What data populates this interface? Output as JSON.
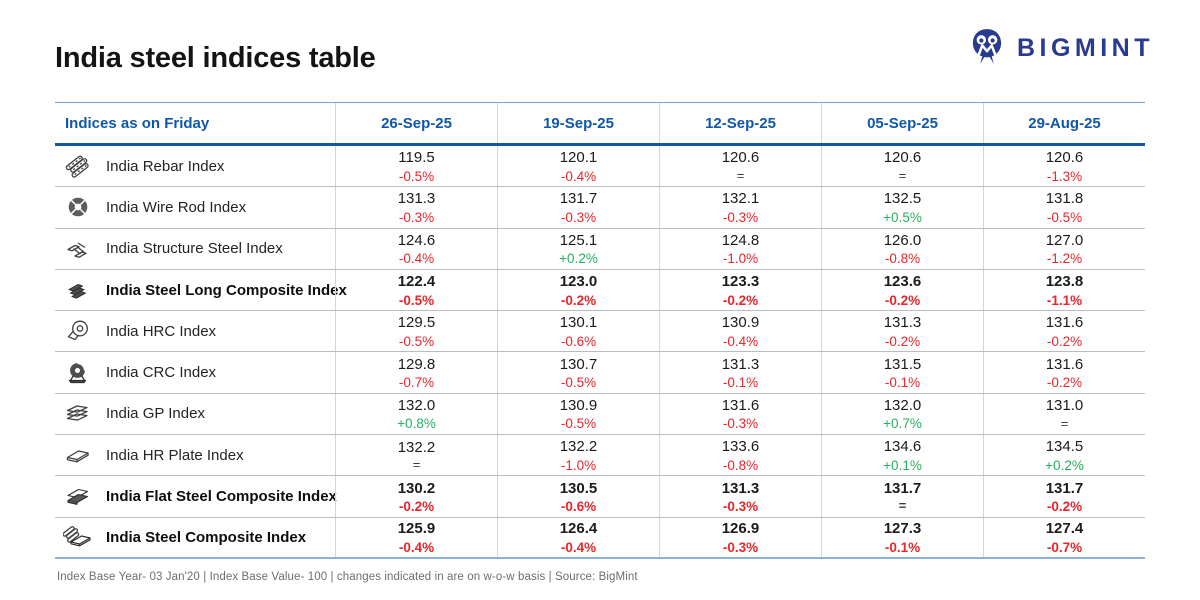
{
  "page": {
    "title": "India steel indices table",
    "footnote": "Index Base Year- 03 Jan'20 | Index Base Value- 100 | changes indicated in are on w-o-w basis | Source: BigMint"
  },
  "logo": {
    "brand": "BIGMINT"
  },
  "colors": {
    "header_blue": "#1157a8",
    "logo_navy": "#283b8f",
    "up_green": "#27ae60",
    "down_red": "#e8262b",
    "flat_gray": "#3c3c3c"
  },
  "table": {
    "header_label": "Indices as on Friday",
    "dates": [
      "26-Sep-25",
      "19-Sep-25",
      "12-Sep-25",
      "05-Sep-25",
      "29-Aug-25"
    ],
    "rows": [
      {
        "name": "India Rebar Index",
        "icon": "rebar-icon",
        "bold": false,
        "cells": [
          [
            "119.5",
            "-0.5%"
          ],
          [
            "120.1",
            "-0.4%"
          ],
          [
            "120.6",
            "="
          ],
          [
            "120.6",
            "="
          ],
          [
            "120.6",
            "-1.3%"
          ]
        ]
      },
      {
        "name": "India Wire Rod Index",
        "icon": "wire-rod-icon",
        "bold": false,
        "cells": [
          [
            "131.3",
            "-0.3%"
          ],
          [
            "131.7",
            "-0.3%"
          ],
          [
            "132.1",
            "-0.3%"
          ],
          [
            "132.5",
            "+0.5%"
          ],
          [
            "131.8",
            "-0.5%"
          ]
        ]
      },
      {
        "name": "India Structure Steel Index",
        "icon": "structure-steel-icon",
        "bold": false,
        "cells": [
          [
            "124.6",
            "-0.4%"
          ],
          [
            "125.1",
            "+0.2%"
          ],
          [
            "124.8",
            "-1.0%"
          ],
          [
            "126.0",
            "-0.8%"
          ],
          [
            "127.0",
            "-1.2%"
          ]
        ]
      },
      {
        "name": "India Steel Long Composite Index",
        "icon": "long-composite-icon",
        "bold": true,
        "cells": [
          [
            "122.4",
            "-0.5%"
          ],
          [
            "123.0",
            "-0.2%"
          ],
          [
            "123.3",
            "-0.2%"
          ],
          [
            "123.6",
            "-0.2%"
          ],
          [
            "123.8",
            "-1.1%"
          ]
        ]
      },
      {
        "name": "India HRC Index",
        "icon": "hrc-coil-icon",
        "bold": false,
        "cells": [
          [
            "129.5",
            "-0.5%"
          ],
          [
            "130.1",
            "-0.6%"
          ],
          [
            "130.9",
            "-0.4%"
          ],
          [
            "131.3",
            "-0.2%"
          ],
          [
            "131.6",
            "-0.2%"
          ]
        ]
      },
      {
        "name": "India CRC Index",
        "icon": "crc-coil-icon",
        "bold": false,
        "cells": [
          [
            "129.8",
            "-0.7%"
          ],
          [
            "130.7",
            "-0.5%"
          ],
          [
            "131.3",
            "-0.1%"
          ],
          [
            "131.5",
            "-0.1%"
          ],
          [
            "131.6",
            "-0.2%"
          ]
        ]
      },
      {
        "name": "India GP Index",
        "icon": "gp-sheets-icon",
        "bold": false,
        "cells": [
          [
            "132.0",
            "+0.8%"
          ],
          [
            "130.9",
            "-0.5%"
          ],
          [
            "131.6",
            "-0.3%"
          ],
          [
            "132.0",
            "+0.7%"
          ],
          [
            "131.0",
            "="
          ]
        ]
      },
      {
        "name": "India HR Plate Index",
        "icon": "hr-plate-icon",
        "bold": false,
        "cells": [
          [
            "132.2",
            "="
          ],
          [
            "132.2",
            "-1.0%"
          ],
          [
            "133.6",
            "-0.8%"
          ],
          [
            "134.6",
            "+0.1%"
          ],
          [
            "134.5",
            "+0.2%"
          ]
        ]
      },
      {
        "name": "India Flat Steel Composite Index",
        "icon": "flat-composite-icon",
        "bold": true,
        "cells": [
          [
            "130.2",
            "-0.2%"
          ],
          [
            "130.5",
            "-0.6%"
          ],
          [
            "131.3",
            "-0.3%"
          ],
          [
            "131.7",
            "="
          ],
          [
            "131.7",
            "-0.2%"
          ]
        ]
      },
      {
        "name": "India Steel Composite Index",
        "icon": "steel-composite-icon",
        "bold": true,
        "cells": [
          [
            "125.9",
            "-0.4%"
          ],
          [
            "126.4",
            "-0.4%"
          ],
          [
            "126.9",
            "-0.3%"
          ],
          [
            "127.3",
            "-0.1%"
          ],
          [
            "127.4",
            "-0.7%"
          ]
        ]
      }
    ]
  },
  "chart_data": {
    "type": "table",
    "title": "India steel indices table",
    "columns": [
      "Indices as on Friday",
      "26-Sep-25",
      "19-Sep-25",
      "12-Sep-25",
      "05-Sep-25",
      "29-Aug-25"
    ],
    "rows": [
      {
        "index": "India Rebar Index",
        "values": [
          119.5,
          120.1,
          120.6,
          120.6,
          120.6
        ],
        "changes": [
          "-0.5%",
          "-0.4%",
          "=",
          "=",
          "-1.3%"
        ]
      },
      {
        "index": "India Wire Rod Index",
        "values": [
          131.3,
          131.7,
          132.1,
          132.5,
          131.8
        ],
        "changes": [
          "-0.3%",
          "-0.3%",
          "-0.3%",
          "+0.5%",
          "-0.5%"
        ]
      },
      {
        "index": "India Structure Steel Index",
        "values": [
          124.6,
          125.1,
          124.8,
          126.0,
          127.0
        ],
        "changes": [
          "-0.4%",
          "+0.2%",
          "-1.0%",
          "-0.8%",
          "-1.2%"
        ]
      },
      {
        "index": "India Steel Long Composite Index",
        "values": [
          122.4,
          123.0,
          123.3,
          123.6,
          123.8
        ],
        "changes": [
          "-0.5%",
          "-0.2%",
          "-0.2%",
          "-0.2%",
          "-1.1%"
        ]
      },
      {
        "index": "India HRC Index",
        "values": [
          129.5,
          130.1,
          130.9,
          131.3,
          131.6
        ],
        "changes": [
          "-0.5%",
          "-0.6%",
          "-0.4%",
          "-0.2%",
          "-0.2%"
        ]
      },
      {
        "index": "India CRC Index",
        "values": [
          129.8,
          130.7,
          131.3,
          131.5,
          131.6
        ],
        "changes": [
          "-0.7%",
          "-0.5%",
          "-0.1%",
          "-0.1%",
          "-0.2%"
        ]
      },
      {
        "index": "India GP Index",
        "values": [
          132.0,
          130.9,
          131.6,
          132.0,
          131.0
        ],
        "changes": [
          "+0.8%",
          "-0.5%",
          "-0.3%",
          "+0.7%",
          "="
        ]
      },
      {
        "index": "India HR Plate Index",
        "values": [
          132.2,
          132.2,
          133.6,
          134.6,
          134.5
        ],
        "changes": [
          "=",
          "-1.0%",
          "-0.8%",
          "+0.1%",
          "+0.2%"
        ]
      },
      {
        "index": "India Flat Steel Composite Index",
        "values": [
          130.2,
          130.5,
          131.3,
          131.7,
          131.7
        ],
        "changes": [
          "-0.2%",
          "-0.6%",
          "-0.3%",
          "=",
          "-0.2%"
        ]
      },
      {
        "index": "India Steel Composite Index",
        "values": [
          125.9,
          126.4,
          126.9,
          127.3,
          127.4
        ],
        "changes": [
          "-0.4%",
          "-0.4%",
          "-0.3%",
          "-0.1%",
          "-0.7%"
        ]
      }
    ],
    "source": "BigMint"
  }
}
